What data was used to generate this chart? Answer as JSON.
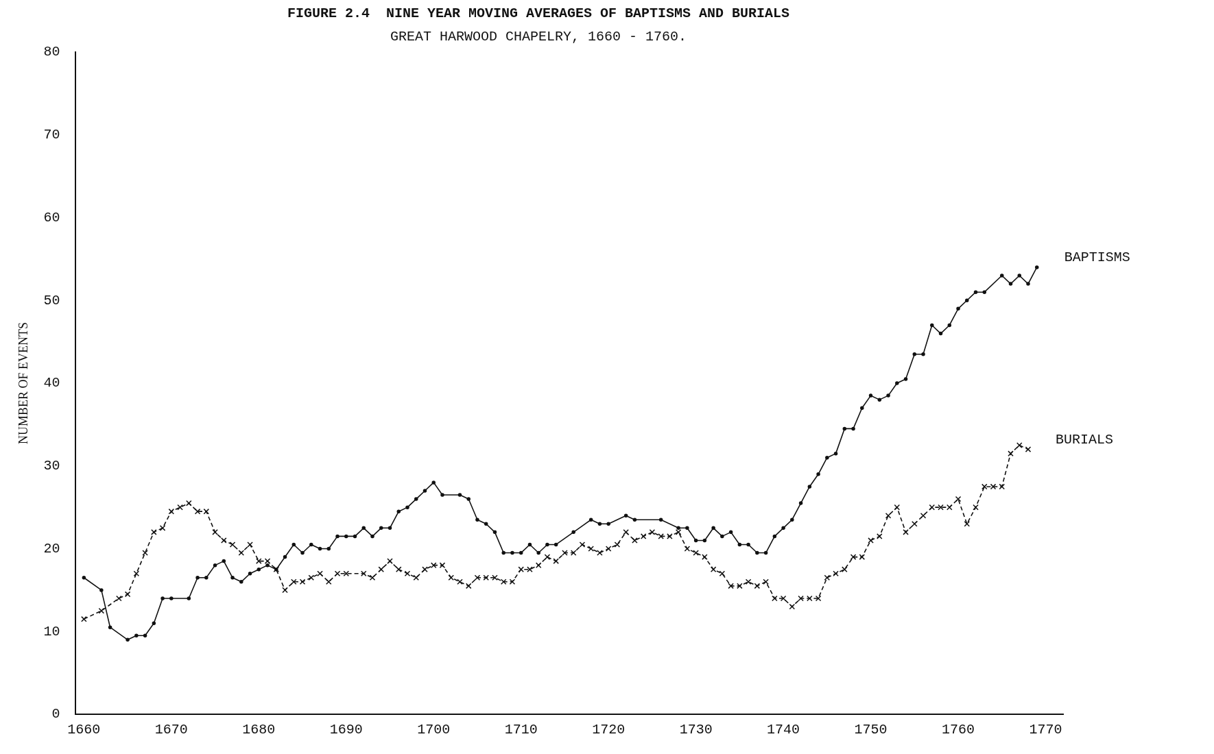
{
  "chart_data": {
    "type": "line",
    "title": "FIGURE 2.4  NINE YEAR MOVING AVERAGES OF BAPTISMS AND BURIALS",
    "subtitle": "GREAT HARWOOD CHAPELRY, 1660 - 1760.",
    "ylabel": "NUMBER OF EVENTS",
    "xlim": [
      1659,
      1772
    ],
    "xticks": [
      1660,
      1670,
      1680,
      1690,
      1700,
      1710,
      1720,
      1730,
      1740,
      1750,
      1760,
      1770
    ],
    "ylim": [
      0,
      80
    ],
    "yticks": [
      0,
      10,
      20,
      30,
      40,
      50,
      60,
      70,
      80
    ],
    "grid": false,
    "legend": false,
    "series": [
      {
        "name": "BAPTISMS",
        "color": "#111111",
        "marker": "circle",
        "line_style": "solid",
        "x": [
          1660,
          1662,
          1663,
          1665,
          1666,
          1667,
          1668,
          1669,
          1670,
          1672,
          1673,
          1674,
          1675,
          1676,
          1677,
          1678,
          1679,
          1680,
          1681,
          1682,
          1683,
          1684,
          1685,
          1686,
          1687,
          1688,
          1689,
          1690,
          1691,
          1692,
          1693,
          1694,
          1695,
          1696,
          1697,
          1698,
          1699,
          1700,
          1701,
          1703,
          1704,
          1705,
          1706,
          1707,
          1708,
          1709,
          1710,
          1711,
          1712,
          1713,
          1714,
          1716,
          1718,
          1719,
          1720,
          1722,
          1723,
          1726,
          1728,
          1729,
          1730,
          1731,
          1732,
          1733,
          1734,
          1735,
          1736,
          1737,
          1738,
          1739,
          1740,
          1741,
          1742,
          1743,
          1744,
          1745,
          1746,
          1747,
          1748,
          1749,
          1750,
          1751,
          1752,
          1753,
          1754,
          1755,
          1756,
          1757,
          1758,
          1759,
          1760,
          1761,
          1762,
          1763,
          1765,
          1766,
          1767,
          1768,
          1769
        ],
        "values": [
          16.5,
          15,
          10.5,
          9,
          9.5,
          9.5,
          11,
          14,
          14,
          14,
          16.5,
          16.5,
          18,
          18.5,
          16.5,
          16,
          17,
          17.5,
          18,
          17.5,
          19,
          20.5,
          19.5,
          20.5,
          20,
          20,
          21.5,
          21.5,
          21.5,
          22.5,
          21.5,
          22.5,
          22.5,
          24.5,
          25,
          26,
          27,
          28,
          26.5,
          26.5,
          26,
          23.5,
          23,
          22,
          19.5,
          19.5,
          19.5,
          20.5,
          19.5,
          20.5,
          20.5,
          22,
          23.5,
          23,
          23,
          24,
          23.5,
          23.5,
          22.5,
          22.5,
          21,
          21,
          22.5,
          21.5,
          22,
          20.5,
          20.5,
          19.5,
          19.5,
          21.5,
          22.5,
          23.5,
          25.5,
          27.5,
          29,
          31,
          31.5,
          34.5,
          34.5,
          37,
          38.5,
          38,
          38.5,
          40,
          40.5,
          43.5,
          43.5,
          47,
          46,
          47,
          49,
          50,
          51,
          51,
          53,
          52,
          53,
          52,
          54
        ]
      },
      {
        "name": "BURIALS",
        "color": "#111111",
        "marker": "cross",
        "line_style": "dashed",
        "x": [
          1660,
          1662,
          1664,
          1665,
          1666,
          1667,
          1668,
          1669,
          1670,
          1671,
          1672,
          1673,
          1674,
          1675,
          1676,
          1677,
          1678,
          1679,
          1680,
          1681,
          1682,
          1683,
          1684,
          1685,
          1686,
          1687,
          1688,
          1689,
          1690,
          1692,
          1693,
          1694,
          1695,
          1696,
          1697,
          1698,
          1699,
          1700,
          1701,
          1702,
          1703,
          1704,
          1705,
          1706,
          1707,
          1708,
          1709,
          1710,
          1711,
          1712,
          1713,
          1714,
          1715,
          1716,
          1717,
          1718,
          1719,
          1720,
          1721,
          1722,
          1723,
          1724,
          1725,
          1726,
          1727,
          1728,
          1729,
          1730,
          1731,
          1732,
          1733,
          1734,
          1735,
          1736,
          1737,
          1738,
          1739,
          1740,
          1741,
          1742,
          1743,
          1744,
          1745,
          1746,
          1747,
          1748,
          1749,
          1750,
          1751,
          1752,
          1753,
          1754,
          1755,
          1756,
          1757,
          1758,
          1759,
          1760,
          1761,
          1762,
          1763,
          1764,
          1765,
          1766,
          1767,
          1768
        ],
        "values": [
          11.5,
          12.5,
          14,
          14.5,
          17,
          19.5,
          22,
          22.5,
          24.5,
          25,
          25.5,
          24.5,
          24.5,
          22,
          21,
          20.5,
          19.5,
          20.5,
          18.5,
          18.5,
          17.5,
          15,
          16,
          16,
          16.5,
          17,
          16,
          17,
          17,
          17,
          16.5,
          17.5,
          18.5,
          17.5,
          17,
          16.5,
          17.5,
          18,
          18,
          16.5,
          16,
          15.5,
          16.5,
          16.5,
          16.5,
          16,
          16,
          17.5,
          17.5,
          18,
          19,
          18.5,
          19.5,
          19.5,
          20.5,
          20,
          19.5,
          20,
          20.5,
          22,
          21,
          21.5,
          22,
          21.5,
          21.5,
          22,
          20,
          19.5,
          19,
          17.5,
          17,
          15.5,
          15.5,
          16,
          15.5,
          16,
          14,
          14,
          13,
          14,
          14,
          14,
          16.5,
          17,
          17.5,
          19,
          19,
          21,
          21.5,
          24,
          25,
          22,
          23,
          24,
          25,
          25,
          25,
          26,
          23,
          25,
          27.5,
          27.5,
          27.5,
          31.5,
          32.5,
          32
        ]
      }
    ]
  }
}
